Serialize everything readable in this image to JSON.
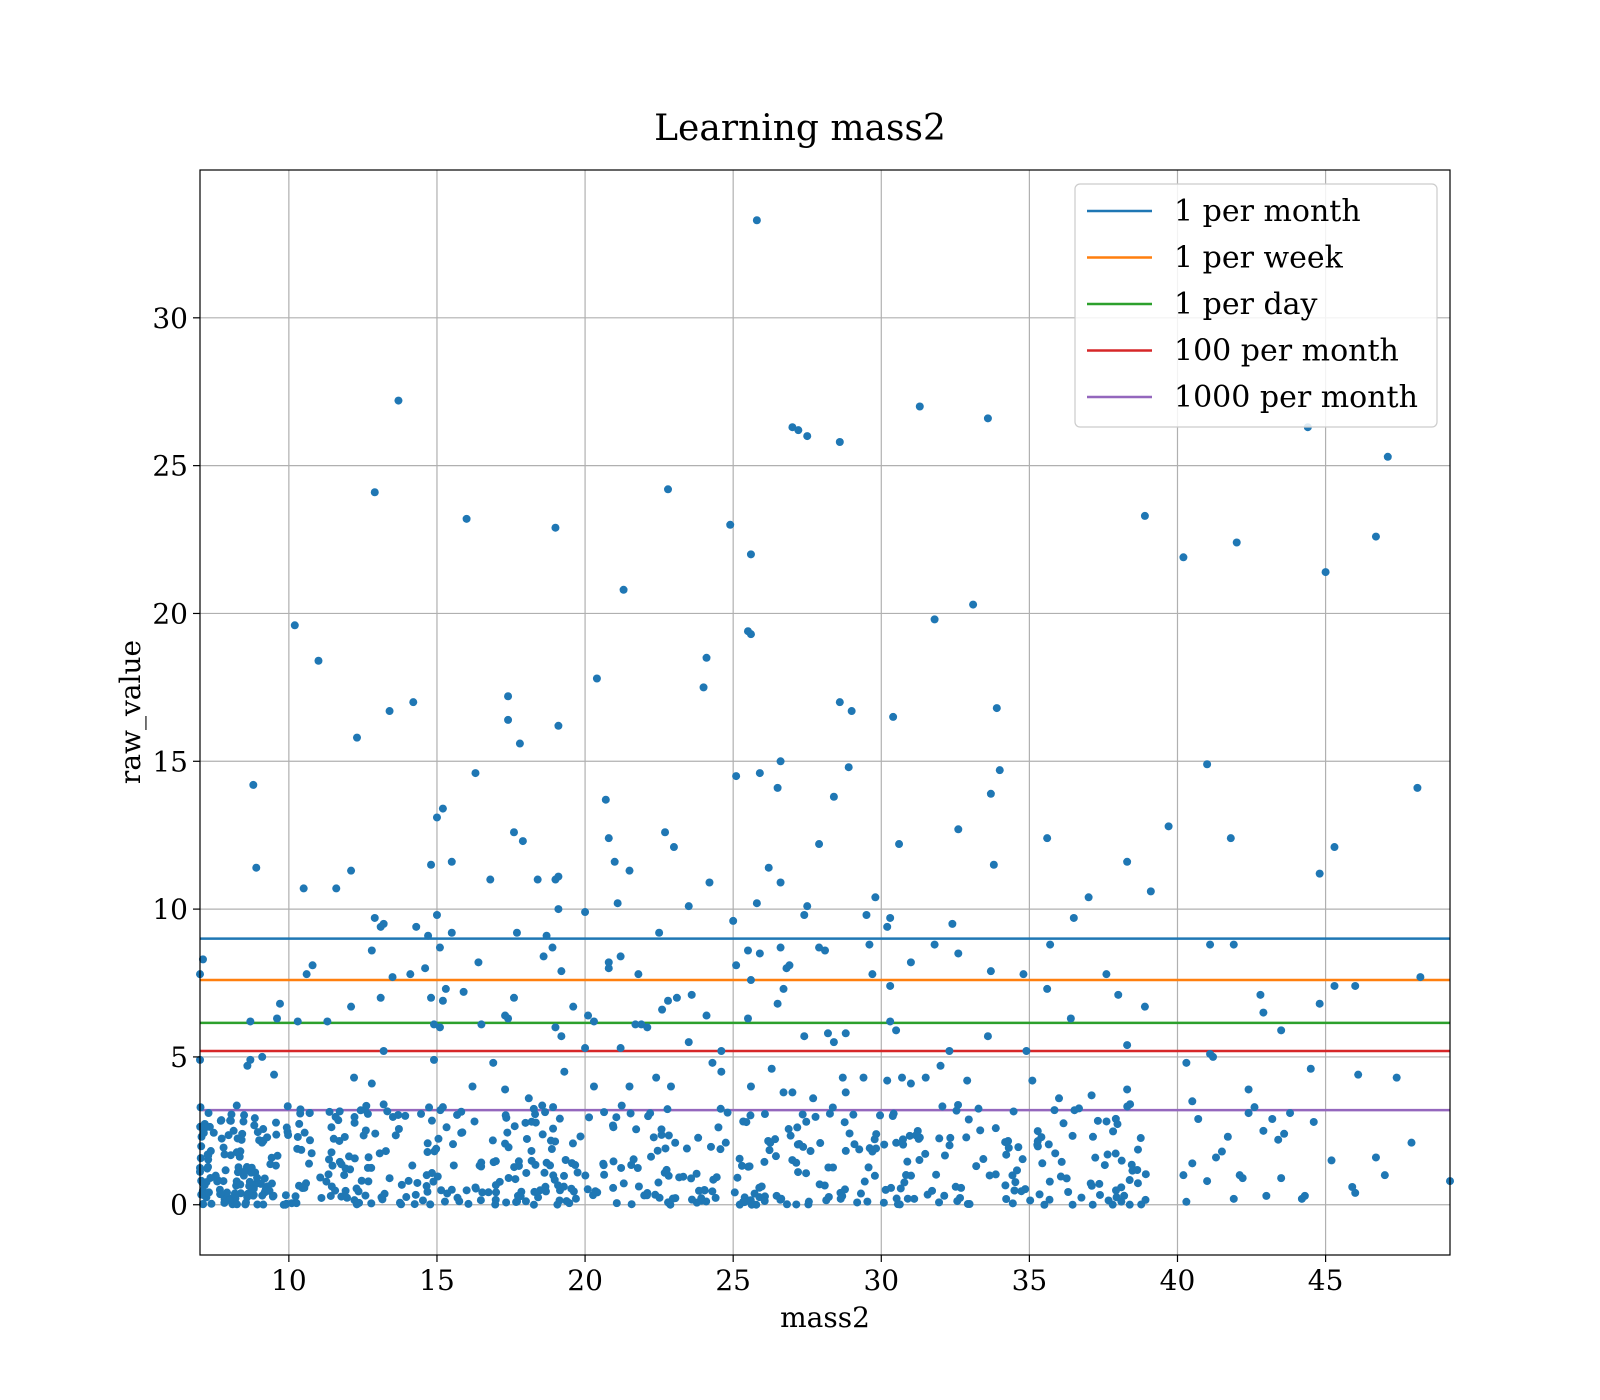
{
  "chart_data": {
    "type": "scatter",
    "title": "Learning mass2",
    "xlabel": "mass2",
    "ylabel": "raw_value",
    "xlim": [
      7,
      49.2
    ],
    "ylim": [
      -1.7,
      35
    ],
    "grid": true,
    "legend_position": "top-right",
    "x_ticks": [
      10,
      15,
      20,
      25,
      30,
      35,
      40,
      45
    ],
    "y_ticks": [
      0,
      5,
      10,
      15,
      20,
      25,
      30
    ],
    "point_color": "#1f77b4",
    "thresholds": [
      {
        "name": "1 per month",
        "y": 9.0,
        "color": "#1f77b4"
      },
      {
        "name": "1 per week",
        "y": 7.6,
        "color": "#ff7f0e"
      },
      {
        "name": "1 per day",
        "y": 6.15,
        "color": "#2ca02c"
      },
      {
        "name": "100 per month",
        "y": 5.2,
        "color": "#d62728"
      },
      {
        "name": "1000 per month",
        "y": 3.2,
        "color": "#9467bd"
      }
    ],
    "points_outliers": [
      [
        7.1,
        8.3
      ],
      [
        7.0,
        7.8
      ],
      [
        7.0,
        4.9
      ],
      [
        25.8,
        33.3
      ],
      [
        13.7,
        27.2
      ],
      [
        12.9,
        24.1
      ],
      [
        16.0,
        23.2
      ],
      [
        19.0,
        22.9
      ],
      [
        22.8,
        24.2
      ],
      [
        24.9,
        23.0
      ],
      [
        25.6,
        22.0
      ],
      [
        21.3,
        20.8
      ],
      [
        10.2,
        19.6
      ],
      [
        11.0,
        18.4
      ],
      [
        25.5,
        19.4
      ],
      [
        25.6,
        19.3
      ],
      [
        24.1,
        18.5
      ],
      [
        20.4,
        17.8
      ],
      [
        24.0,
        17.5
      ],
      [
        17.4,
        17.2
      ],
      [
        14.2,
        17.0
      ],
      [
        13.4,
        16.7
      ],
      [
        17.4,
        16.4
      ],
      [
        19.1,
        16.2
      ],
      [
        12.3,
        15.8
      ],
      [
        17.8,
        15.6
      ],
      [
        16.3,
        14.6
      ],
      [
        8.8,
        14.2
      ],
      [
        25.1,
        14.5
      ],
      [
        25.9,
        14.6
      ],
      [
        26.5,
        14.1
      ],
      [
        26.6,
        15.0
      ],
      [
        28.9,
        14.8
      ],
      [
        15.2,
        13.4
      ],
      [
        15.0,
        13.1
      ],
      [
        20.7,
        13.7
      ],
      [
        28.4,
        13.8
      ],
      [
        17.6,
        12.6
      ],
      [
        17.9,
        12.3
      ],
      [
        22.7,
        12.6
      ],
      [
        23.0,
        12.1
      ],
      [
        20.8,
        12.4
      ],
      [
        27.9,
        12.2
      ],
      [
        8.9,
        11.4
      ],
      [
        12.1,
        11.3
      ],
      [
        14.8,
        11.5
      ],
      [
        15.5,
        11.6
      ],
      [
        21.0,
        11.6
      ],
      [
        21.5,
        11.3
      ],
      [
        19.0,
        11.0
      ],
      [
        19.1,
        11.1
      ],
      [
        18.4,
        11.0
      ],
      [
        16.8,
        11.0
      ],
      [
        10.5,
        10.7
      ],
      [
        11.6,
        10.7
      ],
      [
        24.2,
        10.9
      ],
      [
        26.2,
        11.4
      ],
      [
        26.6,
        10.9
      ],
      [
        21.1,
        10.2
      ],
      [
        23.5,
        10.1
      ],
      [
        25.8,
        10.2
      ],
      [
        19.1,
        10.0
      ],
      [
        20.0,
        9.9
      ],
      [
        28.6,
        17.0
      ],
      [
        29.0,
        16.7
      ],
      [
        27.0,
        26.3
      ],
      [
        27.2,
        26.2
      ],
      [
        27.5,
        26.0
      ],
      [
        28.6,
        25.8
      ],
      [
        31.3,
        27.0
      ],
      [
        33.6,
        26.6
      ],
      [
        30.4,
        16.5
      ],
      [
        33.9,
        16.8
      ],
      [
        31.8,
        19.8
      ],
      [
        33.1,
        20.3
      ],
      [
        34.0,
        14.7
      ],
      [
        33.7,
        13.9
      ],
      [
        30.6,
        12.2
      ],
      [
        32.6,
        12.7
      ],
      [
        33.8,
        11.5
      ],
      [
        35.6,
        12.4
      ],
      [
        38.3,
        11.6
      ],
      [
        39.1,
        10.6
      ],
      [
        39.7,
        12.8
      ],
      [
        40.2,
        21.9
      ],
      [
        38.9,
        23.3
      ],
      [
        42.0,
        22.4
      ],
      [
        41.0,
        14.9
      ],
      [
        41.8,
        12.4
      ],
      [
        44.4,
        26.3
      ],
      [
        45.0,
        21.4
      ],
      [
        46.7,
        22.6
      ],
      [
        47.1,
        25.3
      ],
      [
        48.1,
        14.1
      ],
      [
        44.8,
        11.2
      ],
      [
        45.3,
        12.1
      ],
      [
        29.8,
        10.4
      ],
      [
        29.5,
        9.8
      ],
      [
        27.4,
        9.8
      ],
      [
        27.5,
        10.1
      ],
      [
        30.2,
        9.4
      ],
      [
        30.3,
        9.7
      ],
      [
        32.4,
        9.5
      ],
      [
        29.6,
        8.8
      ],
      [
        31.8,
        8.8
      ],
      [
        32.6,
        8.5
      ],
      [
        31.0,
        8.2
      ],
      [
        27.9,
        8.7
      ],
      [
        28.1,
        8.6
      ],
      [
        26.6,
        8.7
      ],
      [
        26.8,
        8.0
      ],
      [
        26.9,
        8.1
      ],
      [
        25.0,
        9.6
      ],
      [
        25.1,
        8.1
      ],
      [
        25.5,
        8.6
      ],
      [
        25.9,
        8.5
      ],
      [
        25.6,
        7.6
      ],
      [
        22.5,
        9.2
      ],
      [
        21.2,
        8.4
      ],
      [
        20.8,
        8.0
      ],
      [
        20.8,
        8.2
      ],
      [
        19.2,
        7.9
      ],
      [
        18.7,
        9.1
      ],
      [
        18.6,
        8.4
      ],
      [
        18.9,
        8.7
      ],
      [
        17.7,
        9.2
      ],
      [
        16.4,
        8.2
      ],
      [
        15.5,
        9.2
      ],
      [
        15.0,
        9.8
      ],
      [
        15.1,
        8.7
      ],
      [
        14.6,
        8.0
      ],
      [
        14.3,
        9.4
      ],
      [
        14.7,
        9.1
      ],
      [
        14.1,
        7.8
      ],
      [
        13.5,
        7.7
      ],
      [
        12.9,
        9.7
      ],
      [
        13.1,
        9.4
      ],
      [
        13.2,
        9.5
      ],
      [
        12.8,
        8.6
      ],
      [
        10.8,
        8.1
      ],
      [
        10.6,
        7.8
      ],
      [
        21.8,
        7.8
      ],
      [
        29.7,
        7.8
      ],
      [
        30.3,
        7.4
      ],
      [
        33.7,
        7.9
      ],
      [
        34.8,
        7.8
      ],
      [
        35.7,
        8.8
      ],
      [
        35.6,
        7.3
      ],
      [
        37.6,
        7.8
      ],
      [
        38.0,
        7.1
      ],
      [
        37.0,
        10.4
      ],
      [
        36.5,
        9.7
      ],
      [
        41.1,
        8.8
      ],
      [
        41.9,
        8.8
      ],
      [
        45.3,
        7.4
      ],
      [
        46.0,
        7.4
      ],
      [
        48.2,
        7.7
      ]
    ],
    "points_mid": [
      [
        8.7,
        6.2
      ],
      [
        9.7,
        6.8
      ],
      [
        9.6,
        6.3
      ],
      [
        10.3,
        6.2
      ],
      [
        11.3,
        6.2
      ],
      [
        12.1,
        6.7
      ],
      [
        13.1,
        7.0
      ],
      [
        14.8,
        7.0
      ],
      [
        15.2,
        6.9
      ],
      [
        15.3,
        7.3
      ],
      [
        15.9,
        7.2
      ],
      [
        16.5,
        6.1
      ],
      [
        14.9,
        6.1
      ],
      [
        15.1,
        6.0
      ],
      [
        17.3,
        6.4
      ],
      [
        17.4,
        6.3
      ],
      [
        17.6,
        7.0
      ],
      [
        19.0,
        6.0
      ],
      [
        19.2,
        5.7
      ],
      [
        19.6,
        6.7
      ],
      [
        20.1,
        6.4
      ],
      [
        20.3,
        6.2
      ],
      [
        21.7,
        6.1
      ],
      [
        21.9,
        6.1
      ],
      [
        22.1,
        6.0
      ],
      [
        22.8,
        6.9
      ],
      [
        23.1,
        7.0
      ],
      [
        23.6,
        7.1
      ],
      [
        24.1,
        6.4
      ],
      [
        22.6,
        6.6
      ],
      [
        25.5,
        6.3
      ],
      [
        26.5,
        6.8
      ],
      [
        26.7,
        7.3
      ],
      [
        27.4,
        5.7
      ],
      [
        28.2,
        5.8
      ],
      [
        28.4,
        5.5
      ],
      [
        28.8,
        5.8
      ],
      [
        30.3,
        6.2
      ],
      [
        30.5,
        5.9
      ],
      [
        32.3,
        5.2
      ],
      [
        33.6,
        5.7
      ],
      [
        34.9,
        5.2
      ],
      [
        36.4,
        6.3
      ],
      [
        38.3,
        5.4
      ],
      [
        38.9,
        6.7
      ],
      [
        40.3,
        4.8
      ],
      [
        41.1,
        5.1
      ],
      [
        41.2,
        5.0
      ],
      [
        42.8,
        7.1
      ],
      [
        42.9,
        6.5
      ],
      [
        43.5,
        5.9
      ],
      [
        44.8,
        6.8
      ],
      [
        8.6,
        4.7
      ],
      [
        8.7,
        4.9
      ],
      [
        9.1,
        5.0
      ],
      [
        9.5,
        4.4
      ],
      [
        10.7,
        3.1
      ],
      [
        12.2,
        4.3
      ],
      [
        12.8,
        4.1
      ],
      [
        13.2,
        5.2
      ],
      [
        14.9,
        4.9
      ],
      [
        15.2,
        3.3
      ],
      [
        16.2,
        4.0
      ],
      [
        16.9,
        4.8
      ],
      [
        17.3,
        3.9
      ],
      [
        18.1,
        3.6
      ],
      [
        19.3,
        4.5
      ],
      [
        20.0,
        5.3
      ],
      [
        20.3,
        4.0
      ],
      [
        21.2,
        5.3
      ],
      [
        21.5,
        4.0
      ],
      [
        22.4,
        4.3
      ],
      [
        22.9,
        4.0
      ],
      [
        23.5,
        5.5
      ],
      [
        24.3,
        4.8
      ],
      [
        24.6,
        4.5
      ],
      [
        24.6,
        5.2
      ],
      [
        25.6,
        4.0
      ],
      [
        26.3,
        4.6
      ],
      [
        26.7,
        3.8
      ],
      [
        27.0,
        3.8
      ],
      [
        27.7,
        3.6
      ],
      [
        28.7,
        4.3
      ],
      [
        28.8,
        3.8
      ],
      [
        29.4,
        4.3
      ],
      [
        30.2,
        4.2
      ],
      [
        30.7,
        4.3
      ],
      [
        31.0,
        4.1
      ],
      [
        31.5,
        4.3
      ],
      [
        32.0,
        4.7
      ],
      [
        32.9,
        4.2
      ],
      [
        35.1,
        4.2
      ],
      [
        36.0,
        3.6
      ],
      [
        37.1,
        3.7
      ],
      [
        38.3,
        3.9
      ],
      [
        38.4,
        3.4
      ],
      [
        40.5,
        3.5
      ],
      [
        42.4,
        3.9
      ],
      [
        44.5,
        4.6
      ],
      [
        46.1,
        4.4
      ],
      [
        47.4,
        4.3
      ]
    ],
    "dense_cluster": {
      "x_range": [
        7,
        39.3
      ],
      "y_range": [
        0,
        3.4
      ],
      "count": 620,
      "seed": 7
    },
    "dense_cluster_right": [
      [
        40.2,
        1.0
      ],
      [
        40.5,
        1.4
      ],
      [
        40.3,
        0.1
      ],
      [
        40.7,
        2.9
      ],
      [
        41.3,
        1.6
      ],
      [
        41.5,
        1.8
      ],
      [
        41.7,
        2.3
      ],
      [
        41.9,
        0.2
      ],
      [
        42.1,
        1.0
      ],
      [
        42.4,
        3.1
      ],
      [
        42.6,
        3.3
      ],
      [
        42.9,
        2.5
      ],
      [
        43.0,
        0.3
      ],
      [
        43.2,
        2.9
      ],
      [
        43.4,
        2.2
      ],
      [
        43.5,
        0.9
      ],
      [
        43.8,
        3.1
      ],
      [
        44.2,
        0.2
      ],
      [
        44.3,
        0.3
      ],
      [
        44.6,
        2.8
      ],
      [
        45.2,
        1.5
      ],
      [
        45.9,
        0.6
      ],
      [
        46.0,
        0.4
      ],
      [
        46.7,
        1.6
      ],
      [
        47.0,
        1.0
      ],
      [
        47.9,
        2.1
      ],
      [
        49.2,
        0.8
      ],
      [
        41.0,
        0.8
      ],
      [
        42.2,
        0.9
      ],
      [
        43.6,
        2.4
      ]
    ]
  }
}
